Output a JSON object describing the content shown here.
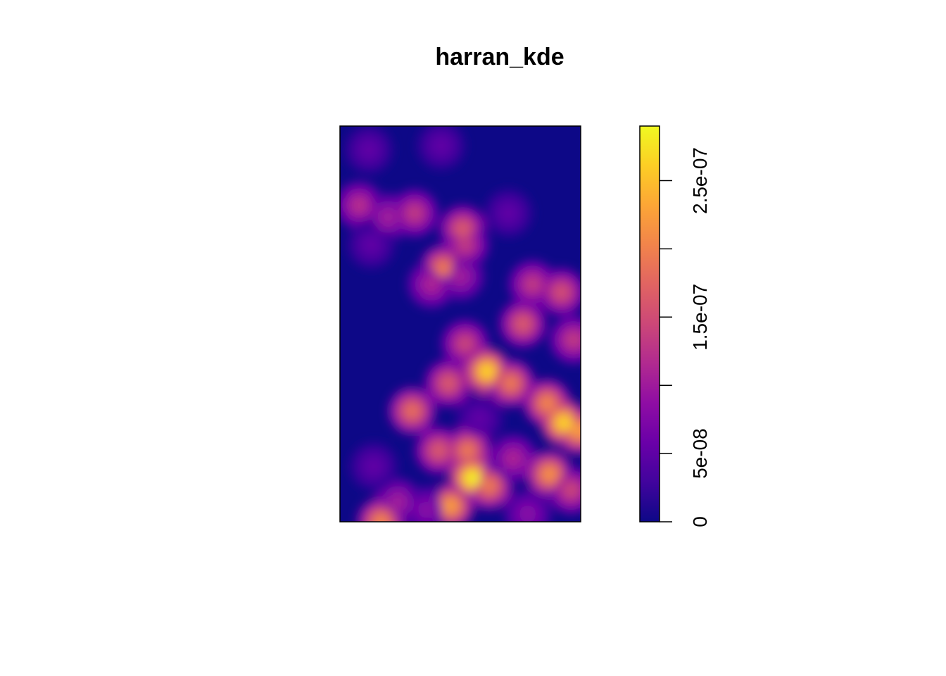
{
  "chart_data": {
    "type": "heatmap",
    "title": "harran_kde",
    "colorscale": {
      "name": "plasma",
      "range": [
        0,
        2.9e-07
      ],
      "stops": [
        "#0d0887",
        "#41049d",
        "#6a00a8",
        "#8f0da4",
        "#b12a90",
        "#cc4778",
        "#e16462",
        "#f2844b",
        "#fca636",
        "#fcce25",
        "#f0f921"
      ]
    },
    "legend": {
      "placement": "right",
      "ticks": [
        0,
        5e-08,
        1e-07,
        1.5e-07,
        2e-07,
        2.5e-07
      ],
      "tick_labels": [
        "0",
        "5e-08",
        "",
        "1.5e-07",
        "",
        "2.5e-07"
      ]
    },
    "density_hotspots": [
      {
        "x": 0.12,
        "y": 0.94,
        "value": 5e-08
      },
      {
        "x": 0.42,
        "y": 0.95,
        "value": 5e-08
      },
      {
        "x": 0.08,
        "y": 0.8,
        "value": 1.2e-07
      },
      {
        "x": 0.2,
        "y": 0.77,
        "value": 1e-07
      },
      {
        "x": 0.31,
        "y": 0.78,
        "value": 1.3e-07
      },
      {
        "x": 0.51,
        "y": 0.74,
        "value": 1.6e-07
      },
      {
        "x": 0.52,
        "y": 0.7,
        "value": 1.3e-07
      },
      {
        "x": 0.7,
        "y": 0.78,
        "value": 5e-08
      },
      {
        "x": 0.13,
        "y": 0.7,
        "value": 5e-08
      },
      {
        "x": 0.43,
        "y": 0.64,
        "value": 1.9e-07
      },
      {
        "x": 0.38,
        "y": 0.6,
        "value": 1.1e-07
      },
      {
        "x": 0.5,
        "y": 0.62,
        "value": 1e-07
      },
      {
        "x": 0.8,
        "y": 0.6,
        "value": 1.3e-07
      },
      {
        "x": 0.92,
        "y": 0.58,
        "value": 1.5e-07
      },
      {
        "x": 0.97,
        "y": 0.46,
        "value": 1.3e-07
      },
      {
        "x": 0.76,
        "y": 0.5,
        "value": 1.6e-07
      },
      {
        "x": 0.52,
        "y": 0.45,
        "value": 1.4e-07
      },
      {
        "x": 0.45,
        "y": 0.35,
        "value": 1.6e-07
      },
      {
        "x": 0.61,
        "y": 0.38,
        "value": 2.6e-07
      },
      {
        "x": 0.71,
        "y": 0.35,
        "value": 1.9e-07
      },
      {
        "x": 0.86,
        "y": 0.3,
        "value": 2e-07
      },
      {
        "x": 0.93,
        "y": 0.25,
        "value": 2.6e-07
      },
      {
        "x": 0.99,
        "y": 0.23,
        "value": 2.2e-07
      },
      {
        "x": 0.3,
        "y": 0.28,
        "value": 1.8e-07
      },
      {
        "x": 0.58,
        "y": 0.26,
        "value": 5e-08
      },
      {
        "x": 0.41,
        "y": 0.18,
        "value": 1.6e-07
      },
      {
        "x": 0.53,
        "y": 0.18,
        "value": 1.9e-07
      },
      {
        "x": 0.55,
        "y": 0.11,
        "value": 2.8e-07
      },
      {
        "x": 0.46,
        "y": 0.04,
        "value": 2.2e-07
      },
      {
        "x": 0.62,
        "y": 0.09,
        "value": 1.9e-07
      },
      {
        "x": 0.72,
        "y": 0.16,
        "value": 1.1e-07
      },
      {
        "x": 0.87,
        "y": 0.12,
        "value": 2.1e-07
      },
      {
        "x": 0.96,
        "y": 0.08,
        "value": 1.4e-07
      },
      {
        "x": 0.24,
        "y": 0.05,
        "value": 1e-07
      },
      {
        "x": 0.17,
        "y": 0.0,
        "value": 2e-07
      },
      {
        "x": 0.14,
        "y": 0.14,
        "value": 5e-08
      },
      {
        "x": 0.36,
        "y": 0.03,
        "value": 8e-08
      },
      {
        "x": 0.78,
        "y": 0.02,
        "value": 8e-08
      }
    ]
  }
}
